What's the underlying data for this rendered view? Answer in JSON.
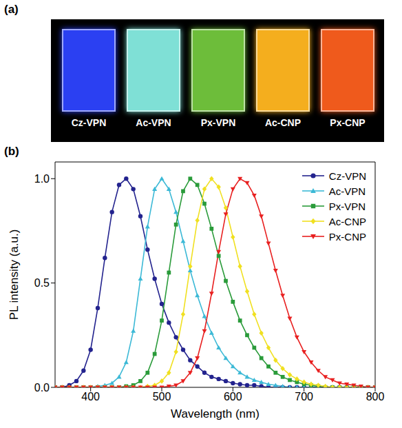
{
  "photo": {
    "label": "(a)",
    "films": [
      {
        "name": "Cz-VPN",
        "color": "#2b40f2"
      },
      {
        "name": "Ac-VPN",
        "color": "#7fe0d6"
      },
      {
        "name": "Px-VPN",
        "color": "#6dbd3a"
      },
      {
        "name": "Ac-CNP",
        "color": "#f4ae1e"
      },
      {
        "name": "Px-CNP",
        "color": "#ef5a1c"
      }
    ]
  },
  "chart_data": {
    "label": "(b)",
    "type": "line",
    "x_label": "Wavelength (nm)",
    "y_label": "PL intensity (a.u.)",
    "xlim": [
      350,
      800
    ],
    "xticks": [
      400,
      500,
      600,
      700,
      800
    ],
    "ylim": [
      0,
      1.08
    ],
    "yticks": [
      {
        "value": 0,
        "label": "0.0"
      },
      {
        "value": 0.5,
        "label": "0.5"
      },
      {
        "value": 1,
        "label": "1.0"
      }
    ],
    "legend": "upper right",
    "x": [
      350,
      360,
      370,
      380,
      390,
      400,
      410,
      420,
      430,
      440,
      450,
      460,
      470,
      480,
      490,
      500,
      510,
      520,
      530,
      540,
      550,
      560,
      570,
      580,
      590,
      600,
      610,
      620,
      630,
      640,
      650,
      660,
      670,
      680,
      690,
      700,
      710,
      720,
      730,
      740,
      750,
      760,
      770,
      780,
      790,
      800
    ],
    "series": [
      {
        "name": "Cz-VPN",
        "color": "#23238e",
        "marker": "circle",
        "values": [
          0,
          0,
          0.01,
          0.03,
          0.08,
          0.18,
          0.38,
          0.62,
          0.84,
          0.97,
          1.0,
          0.95,
          0.82,
          0.66,
          0.52,
          0.4,
          0.31,
          0.24,
          0.18,
          0.13,
          0.1,
          0.07,
          0.05,
          0.04,
          0.03,
          0.02,
          0.015,
          0.01,
          0.01,
          0.005,
          0,
          0,
          0,
          0,
          0,
          0,
          0,
          0,
          0,
          0,
          0,
          0,
          0,
          0,
          0,
          0
        ]
      },
      {
        "name": "Ac-VPN",
        "color": "#3cb9d6",
        "marker": "triangle",
        "values": [
          0,
          0,
          0,
          0,
          0,
          0,
          0.005,
          0.01,
          0.02,
          0.05,
          0.12,
          0.27,
          0.52,
          0.77,
          0.95,
          1.0,
          0.95,
          0.84,
          0.7,
          0.56,
          0.44,
          0.34,
          0.26,
          0.19,
          0.14,
          0.1,
          0.07,
          0.05,
          0.035,
          0.025,
          0.015,
          0.01,
          0.005,
          0,
          0,
          0,
          0,
          0,
          0,
          0,
          0,
          0,
          0,
          0,
          0,
          0
        ]
      },
      {
        "name": "Px-VPN",
        "color": "#2a9b3a",
        "marker": "square",
        "values": [
          0,
          0,
          0,
          0,
          0,
          0,
          0,
          0,
          0,
          0,
          0.005,
          0.01,
          0.03,
          0.07,
          0.16,
          0.32,
          0.55,
          0.78,
          0.94,
          1.0,
          0.97,
          0.88,
          0.76,
          0.63,
          0.51,
          0.41,
          0.32,
          0.25,
          0.19,
          0.14,
          0.1,
          0.07,
          0.05,
          0.035,
          0.025,
          0.015,
          0.01,
          0.005,
          0,
          0,
          0,
          0,
          0,
          0,
          0,
          0
        ]
      },
      {
        "name": "Ac-CNP",
        "color": "#f0e020",
        "marker": "diamond",
        "values": [
          0,
          0,
          0,
          0,
          0,
          0,
          0,
          0,
          0,
          0,
          0,
          0,
          0,
          0.005,
          0.01,
          0.03,
          0.07,
          0.17,
          0.35,
          0.58,
          0.8,
          0.95,
          1.0,
          0.96,
          0.86,
          0.72,
          0.58,
          0.46,
          0.35,
          0.26,
          0.19,
          0.13,
          0.09,
          0.06,
          0.04,
          0.025,
          0.015,
          0.01,
          0.005,
          0,
          0,
          0,
          0,
          0,
          0,
          0
        ]
      },
      {
        "name": "Px-CNP",
        "color": "#e82020",
        "marker": "triangle-down",
        "values": [
          0,
          0,
          0,
          0,
          0,
          0,
          0,
          0,
          0,
          0,
          0,
          0,
          0,
          0,
          0,
          0,
          0.005,
          0.01,
          0.03,
          0.07,
          0.14,
          0.27,
          0.45,
          0.65,
          0.83,
          0.95,
          1.0,
          0.98,
          0.92,
          0.82,
          0.69,
          0.56,
          0.44,
          0.33,
          0.24,
          0.17,
          0.12,
          0.08,
          0.05,
          0.035,
          0.02,
          0.015,
          0.01,
          0.005,
          0,
          0
        ]
      }
    ]
  }
}
